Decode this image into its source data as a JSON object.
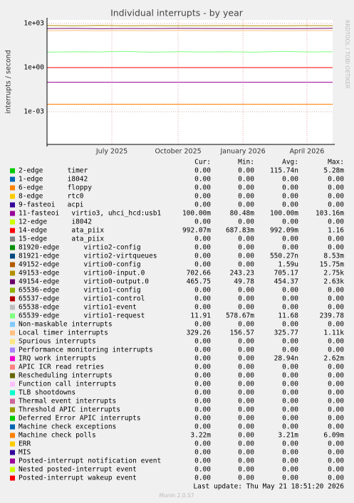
{
  "chart_data": {
    "type": "line",
    "title": "Individual interrupts - by year",
    "y_label": "interrupts / second",
    "side_text": "RRDTOOL / TOBI OETIKER",
    "log_scale": true,
    "grid": true,
    "ylim": [
      5.9e-06,
      1740
    ],
    "yticks": [
      {
        "value": 0.001,
        "label": "1e-03"
      },
      {
        "value": 1,
        "label": "1e+00"
      },
      {
        "value": 1000,
        "label": "1e+03"
      }
    ],
    "xticks": [
      "July 2025",
      "October 2025",
      "January 2026",
      "April 2026"
    ],
    "columns": [
      "Cur:",
      "Min:",
      "Avg:",
      "Max:"
    ],
    "series": [
      {
        "name": "2-edge      timer",
        "color": "#00cc00",
        "stats": [
          "0.00",
          "0.00",
          "115.74n",
          "5.28m"
        ]
      },
      {
        "name": "1-edge      i8042",
        "color": "#0066b3",
        "stats": [
          "0.00",
          "0.00",
          "0.00",
          "0.00"
        ]
      },
      {
        "name": "6-edge      floppy",
        "color": "#ff8000",
        "stats": [
          "0.00",
          "0.00",
          "0.00",
          "0.00"
        ]
      },
      {
        "name": "8-edge      rtc0",
        "color": "#ffcc00",
        "stats": [
          "0.00",
          "0.00",
          "0.00",
          "0.00"
        ]
      },
      {
        "name": "9-fasteoi   acpi",
        "color": "#330099",
        "stats": [
          "0.00",
          "0.00",
          "0.00",
          "0.00"
        ]
      },
      {
        "name": "11-fasteoi   virtio3, uhci_hcd:usb1",
        "color": "#990099",
        "stats": [
          "100.00m",
          "80.48m",
          "100.00m",
          "103.16m"
        ],
        "values": [
          0.1,
          0.1,
          0.1,
          0.1,
          0.1,
          0.1,
          0.1,
          0.1,
          0.1,
          0.1,
          0.1,
          0.1
        ]
      },
      {
        "name": "12-edge      i8042",
        "color": "#ccff00",
        "stats": [
          "0.00",
          "0.00",
          "0.00",
          "0.00"
        ]
      },
      {
        "name": "14-edge      ata_piix",
        "color": "#ff0000",
        "stats": [
          "992.07m",
          "687.83m",
          "992.09m",
          "1.16"
        ],
        "values": [
          0.99,
          0.99,
          0.99,
          0.99,
          0.99,
          0.99,
          0.99,
          0.99,
          0.99,
          0.99,
          0.99,
          0.99
        ]
      },
      {
        "name": "15-edge      ata_piix",
        "color": "#808080",
        "stats": [
          "0.00",
          "0.00",
          "0.00",
          "0.00"
        ]
      },
      {
        "name": "81920-edge      virtio2-config",
        "color": "#008f00",
        "stats": [
          "0.00",
          "0.00",
          "0.00",
          "0.00"
        ]
      },
      {
        "name": "81921-edge      virtio2-virtqueues",
        "color": "#00487d",
        "stats": [
          "0.00",
          "0.00",
          "550.27n",
          "8.53m"
        ]
      },
      {
        "name": "49152-edge      virtio0-config",
        "color": "#b35a00",
        "stats": [
          "0.00",
          "0.00",
          "1.59u",
          "15.75m"
        ]
      },
      {
        "name": "49153-edge      virtio0-input.0",
        "color": "#b38f00",
        "stats": [
          "702.66",
          "243.23",
          "705.17",
          "2.75k"
        ],
        "values": [
          720,
          690,
          730,
          700,
          710,
          695,
          705,
          715,
          700,
          690,
          710,
          703
        ]
      },
      {
        "name": "49154-edge      virtio0-output.0",
        "color": "#6b006b",
        "stats": [
          "465.75",
          "49.78",
          "454.37",
          "2.63k"
        ],
        "values": [
          450,
          460,
          445,
          455,
          450,
          460,
          455,
          450,
          458,
          452,
          450,
          466
        ]
      },
      {
        "name": "65536-edge      virtio1-config",
        "color": "#8fb300",
        "stats": [
          "0.00",
          "0.00",
          "0.00",
          "0.00"
        ]
      },
      {
        "name": "65537-edge      virtio1-control",
        "color": "#b30000",
        "stats": [
          "0.00",
          "0.00",
          "0.00",
          "0.00"
        ]
      },
      {
        "name": "65538-edge      virtio1-event",
        "color": "#bebebe",
        "stats": [
          "0.00",
          "0.00",
          "0.00",
          "0.00"
        ]
      },
      {
        "name": "65539-edge      virtio1-request",
        "color": "#80ff80",
        "stats": [
          "11.91",
          "578.67m",
          "11.68",
          "239.78"
        ],
        "values": [
          11,
          12,
          11.5,
          12.5,
          11,
          12,
          11.5,
          12,
          11,
          12.5,
          11.5,
          11.9
        ]
      },
      {
        "name": "Non-maskable interrupts",
        "color": "#80c9ff",
        "stats": [
          "0.00",
          "0.00",
          "0.00",
          "0.00"
        ]
      },
      {
        "name": "Local timer interrupts",
        "color": "#ffc080",
        "stats": [
          "329.26",
          "156.57",
          "325.77",
          "1.11k"
        ],
        "values": [
          320,
          330,
          325,
          328,
          322,
          330,
          326,
          324,
          328,
          325,
          327,
          329
        ]
      },
      {
        "name": "Spurious interrupts",
        "color": "#ffe680",
        "stats": [
          "0.00",
          "0.00",
          "0.00",
          "0.00"
        ]
      },
      {
        "name": "Performance monitoring interrupts",
        "color": "#aa80ff",
        "stats": [
          "0.00",
          "0.00",
          "0.00",
          "0.00"
        ]
      },
      {
        "name": "IRQ work interrupts",
        "color": "#ee00cc",
        "stats": [
          "0.00",
          "0.00",
          "28.94n",
          "2.62m"
        ]
      },
      {
        "name": "APIC ICR read retries",
        "color": "#ff8080",
        "stats": [
          "0.00",
          "0.00",
          "0.00",
          "0.00"
        ]
      },
      {
        "name": "Rescheduling interrupts",
        "color": "#666600",
        "stats": [
          "0.00",
          "0.00",
          "0.00",
          "0.00"
        ]
      },
      {
        "name": "Function call interrupts",
        "color": "#ffbfff",
        "stats": [
          "0.00",
          "0.00",
          "0.00",
          "0.00"
        ]
      },
      {
        "name": "TLB shootdowns",
        "color": "#00ffcc",
        "stats": [
          "0.00",
          "0.00",
          "0.00",
          "0.00"
        ]
      },
      {
        "name": "Thermal event interrupts",
        "color": "#cc6699",
        "stats": [
          "0.00",
          "0.00",
          "0.00",
          "0.00"
        ]
      },
      {
        "name": "Threshold APIC interrupts",
        "color": "#999900",
        "stats": [
          "0.00",
          "0.00",
          "0.00",
          "0.00"
        ]
      },
      {
        "name": "Deferred Error APIC interrupts",
        "color": "#00cc00",
        "stats": [
          "0.00",
          "0.00",
          "0.00",
          "0.00"
        ]
      },
      {
        "name": "Machine check exceptions",
        "color": "#0066b3",
        "stats": [
          "0.00",
          "0.00",
          "0.00",
          "0.00"
        ]
      },
      {
        "name": "Machine check polls",
        "color": "#ff8000",
        "stats": [
          "3.22m",
          "0.00",
          "3.21m",
          "6.09m"
        ],
        "values": [
          0.0032,
          0.0032,
          0.0032,
          0.0032,
          0.0032,
          0.0032,
          0.0032,
          0.0032,
          0.0032,
          0.0032,
          0.0032,
          0.0032
        ]
      },
      {
        "name": "ERR",
        "color": "#ffcc00",
        "stats": [
          "0.00",
          "0.00",
          "0.00",
          "0.00"
        ]
      },
      {
        "name": "MIS",
        "color": "#330099",
        "stats": [
          "0.00",
          "0.00",
          "0.00",
          "0.00"
        ]
      },
      {
        "name": "Posted-interrupt notification event",
        "color": "#990099",
        "stats": [
          "0.00",
          "0.00",
          "0.00",
          "0.00"
        ]
      },
      {
        "name": "Nested posted-interrupt event",
        "color": "#ccff00",
        "stats": [
          "0.00",
          "0.00",
          "0.00",
          "0.00"
        ]
      },
      {
        "name": "Posted-interrupt wakeup event",
        "color": "#ff0000",
        "stats": [
          "0.00",
          "0.00",
          "0.00",
          "0.00"
        ]
      }
    ],
    "last_update": "Last update: Thu May 21 18:51:20 2026",
    "footer": "Munin 2.0.57"
  }
}
